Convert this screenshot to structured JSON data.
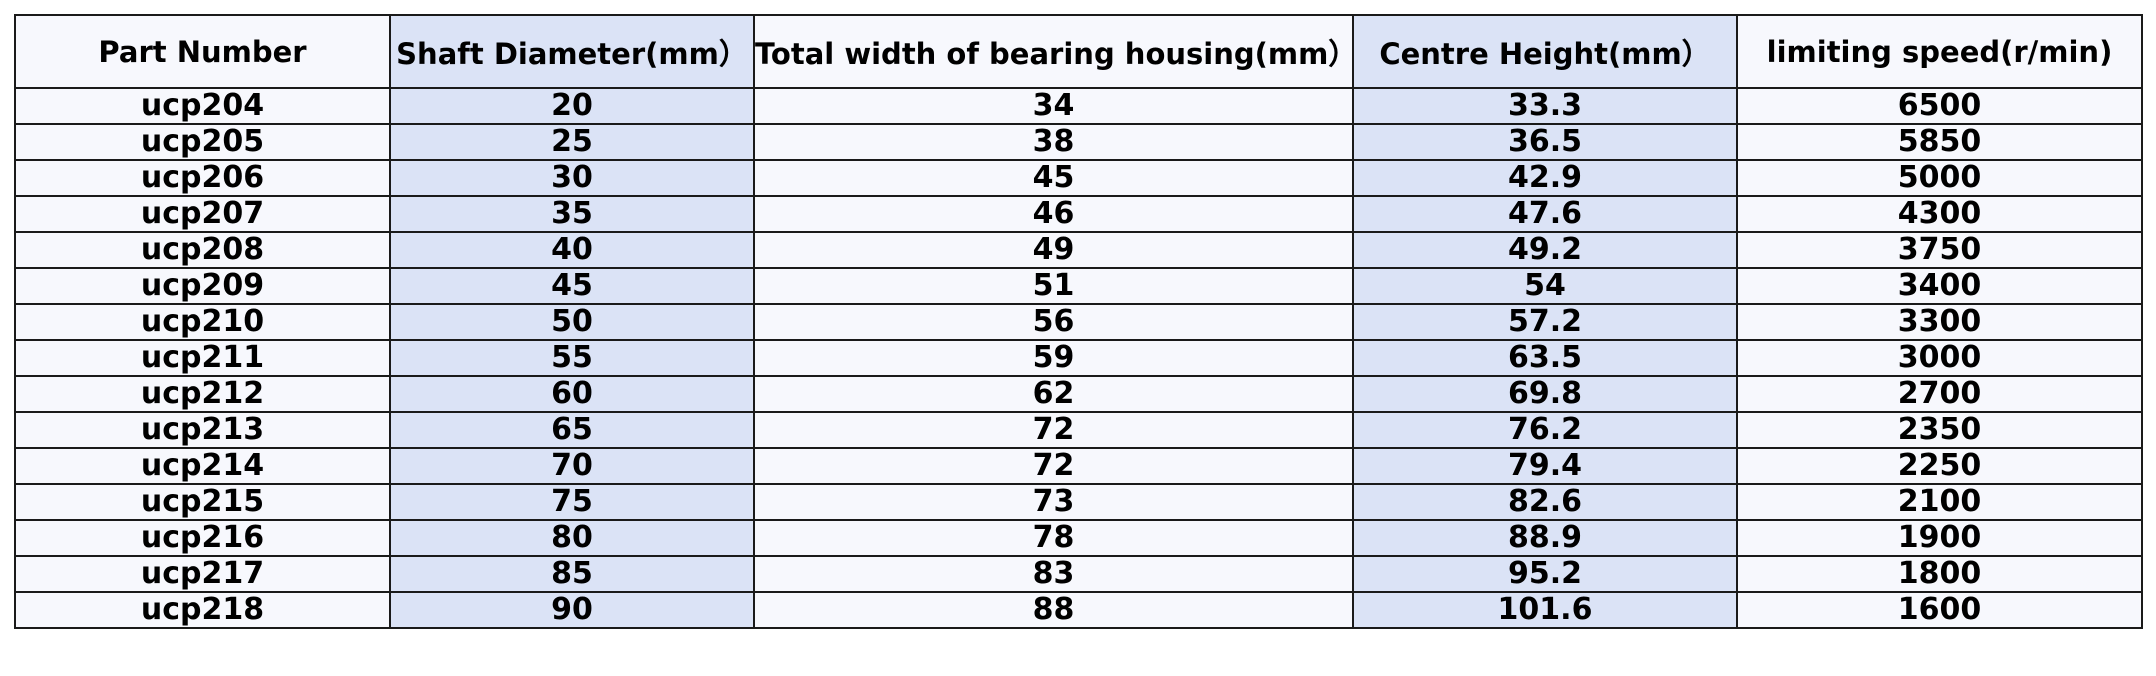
{
  "table": {
    "headers": [
      "Part Number",
      "Shaft Diameter(mm）",
      "Total width of bearing housing(mm）",
      "Centre Height(mm）",
      "limiting speed(r/min)"
    ],
    "rows": [
      [
        "ucp204",
        "20",
        "34",
        "33.3",
        "6500"
      ],
      [
        "ucp205",
        "25",
        "38",
        "36.5",
        "5850"
      ],
      [
        "ucp206",
        "30",
        "45",
        "42.9",
        "5000"
      ],
      [
        "ucp207",
        "35",
        "46",
        "47.6",
        "4300"
      ],
      [
        "ucp208",
        "40",
        "49",
        "49.2",
        "3750"
      ],
      [
        "ucp209",
        "45",
        "51",
        "54",
        "3400"
      ],
      [
        "ucp210",
        "50",
        "56",
        "57.2",
        "3300"
      ],
      [
        "ucp211",
        "55",
        "59",
        "63.5",
        "3000"
      ],
      [
        "ucp212",
        "60",
        "62",
        "69.8",
        "2700"
      ],
      [
        "ucp213",
        "65",
        "72",
        "76.2",
        "2350"
      ],
      [
        "ucp214",
        "70",
        "72",
        "79.4",
        "2250"
      ],
      [
        "ucp215",
        "75",
        "73",
        "82.6",
        "2100"
      ],
      [
        "ucp216",
        "80",
        "78",
        "88.9",
        "1900"
      ],
      [
        "ucp217",
        "85",
        "83",
        "95.2",
        "1800"
      ],
      [
        "ucp218",
        "90",
        "88",
        "101.6",
        "1600"
      ]
    ]
  },
  "colors": {
    "shaded_column": "#dbe3f6",
    "cell_background": "#f7f8fd",
    "border": "#1a1a1a",
    "text": "#000000"
  }
}
